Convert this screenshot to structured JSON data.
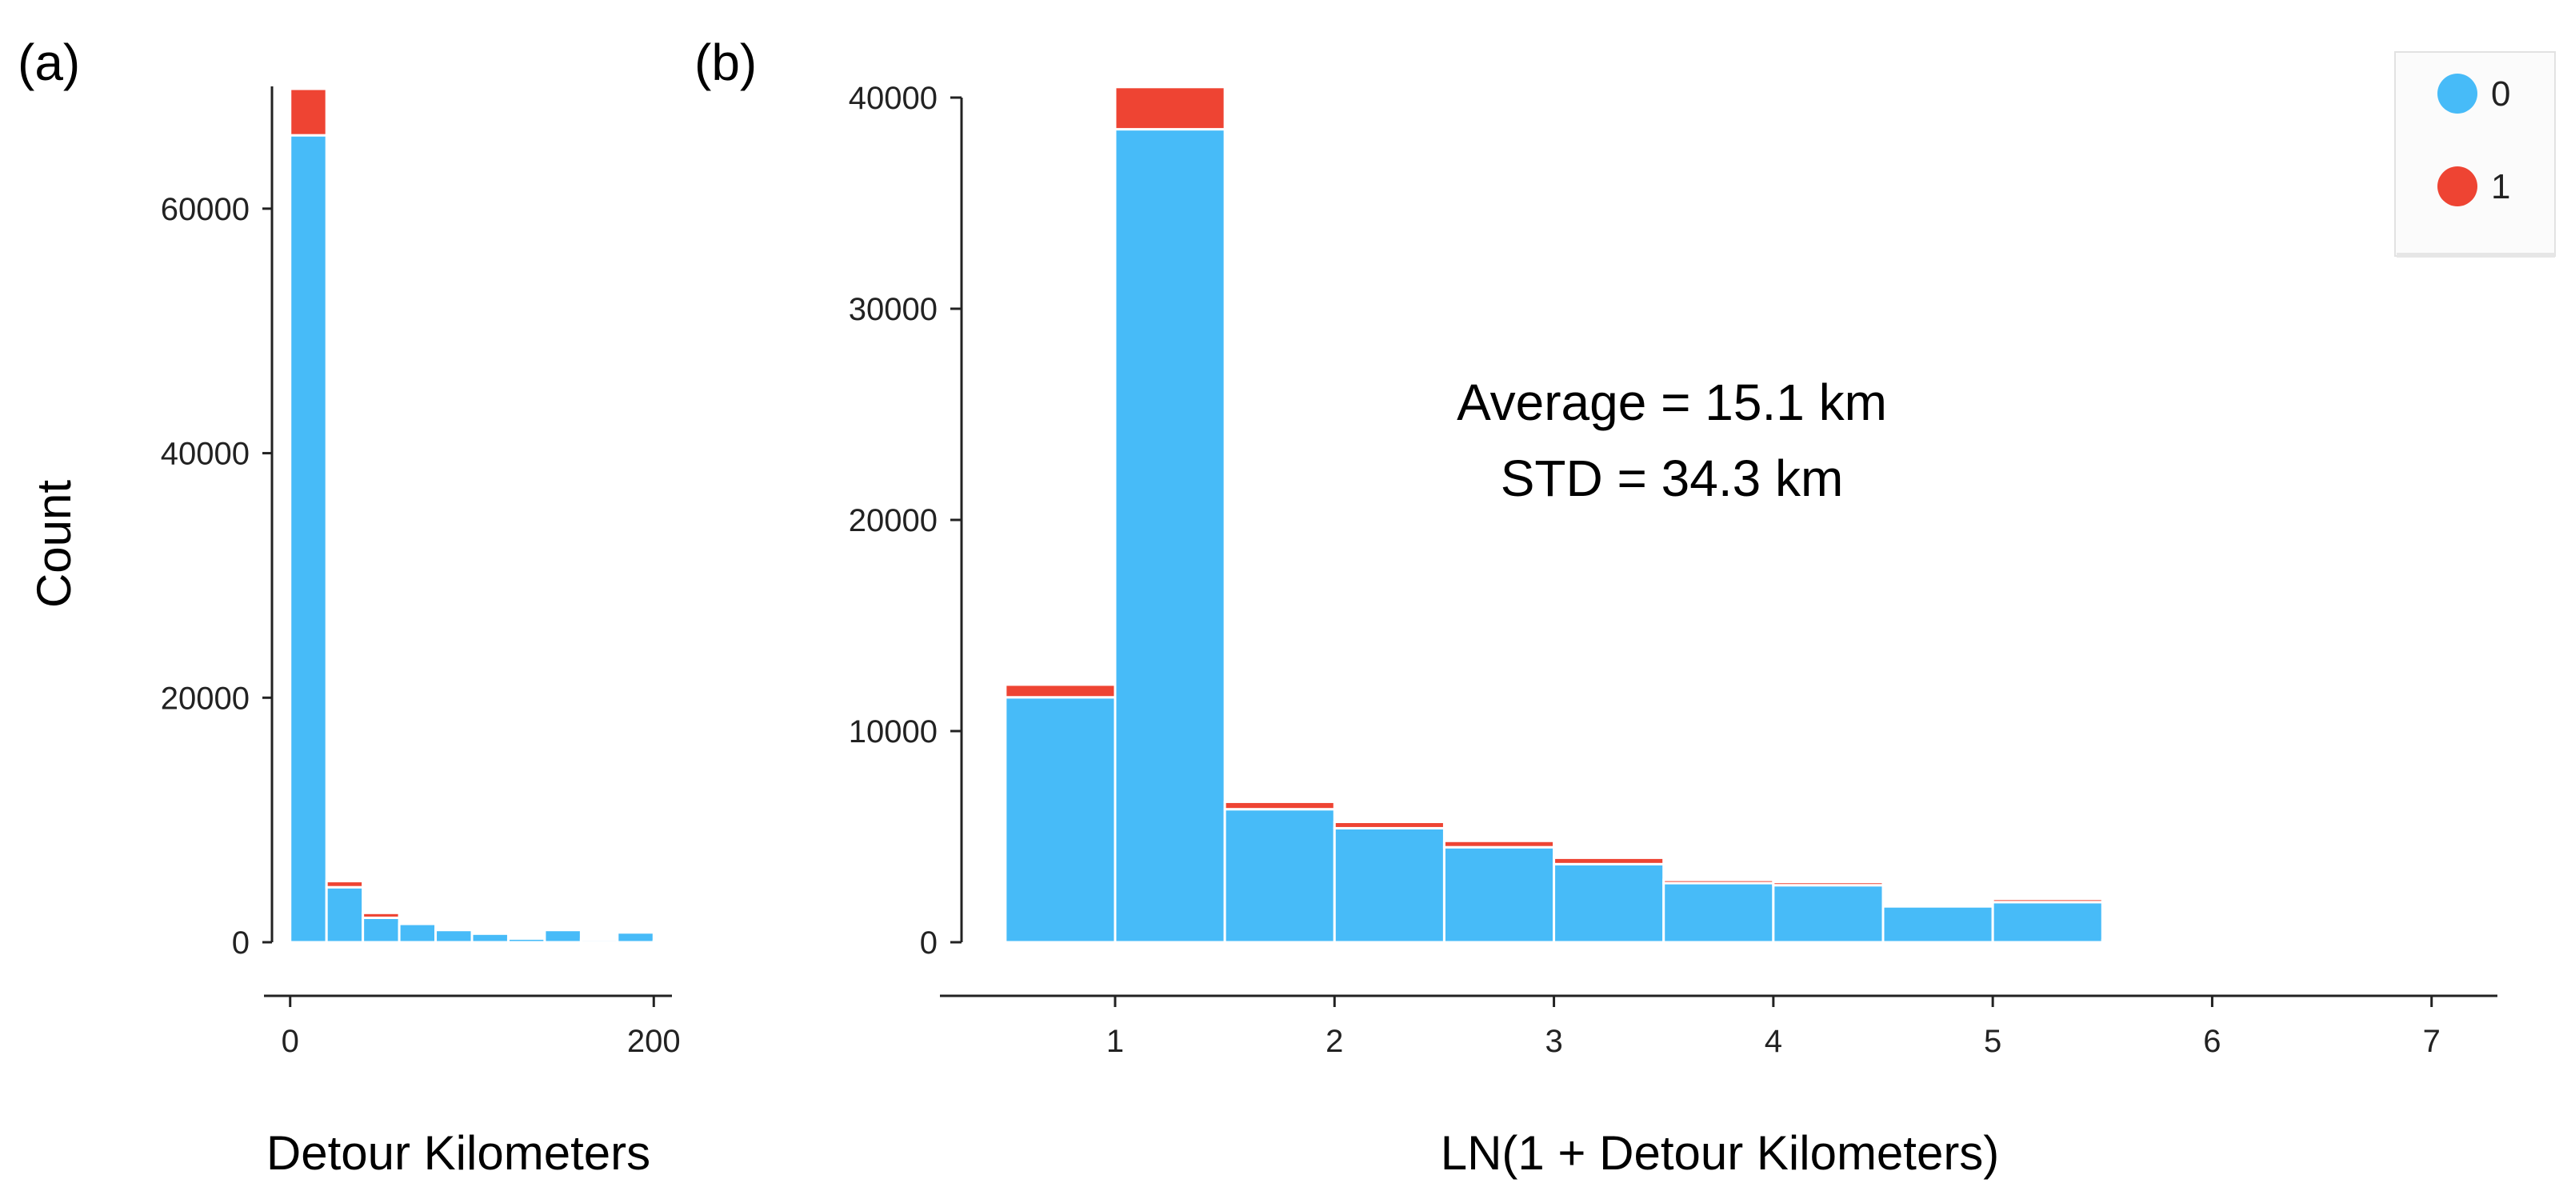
{
  "colors": {
    "series0": "#47BBF8",
    "series1": "#EE4433",
    "axis": "#222222",
    "bar_gap": "#ffffff"
  },
  "chart_data": [
    {
      "panel": "(a)",
      "type": "bar",
      "stacked": true,
      "xlabel": "Detour Kilometers",
      "ylabel": "Count",
      "ylim": [
        0,
        70000
      ],
      "xlim": [
        -10,
        210
      ],
      "yticks": [
        "0",
        "20000",
        "40000",
        "60000"
      ],
      "yticks_values": [
        0,
        20000,
        40000,
        60000
      ],
      "xticks": [
        "0",
        "200"
      ],
      "xticks_values": [
        0,
        200
      ],
      "bins": [
        [
          0,
          20
        ],
        [
          20,
          40
        ],
        [
          40,
          60
        ],
        [
          60,
          80
        ],
        [
          80,
          100
        ],
        [
          100,
          120
        ],
        [
          120,
          140
        ],
        [
          140,
          160
        ],
        [
          160,
          180
        ],
        [
          180,
          200
        ],
        [
          200,
          220
        ]
      ],
      "series": [
        {
          "name": "0",
          "values": [
            66000,
            4500,
            2000,
            1500,
            1000,
            700,
            300,
            1000,
            200,
            800,
            100
          ]
        },
        {
          "name": "1",
          "values": [
            3800,
            500,
            400,
            0,
            0,
            0,
            0,
            0,
            0,
            0,
            0
          ]
        }
      ],
      "grid": false
    },
    {
      "panel": "(b)",
      "type": "bar",
      "stacked": true,
      "xlabel": "LN(1 + Detour Kilometers)",
      "ylabel": "",
      "ylim": [
        0,
        40000
      ],
      "xlim": [
        0.3,
        7.3
      ],
      "yticks": [
        "0",
        "10000",
        "20000",
        "30000",
        "40000"
      ],
      "yticks_values": [
        0,
        10000,
        20000,
        30000,
        40000
      ],
      "xticks": [
        "1",
        "2",
        "3",
        "4",
        "5",
        "6",
        "7"
      ],
      "xticks_values": [
        1,
        2,
        3,
        4,
        5,
        6,
        7
      ],
      "bins": [
        [
          0.5,
          1.0
        ],
        [
          1.0,
          1.5
        ],
        [
          1.5,
          2.0
        ],
        [
          2.0,
          2.5
        ],
        [
          2.5,
          3.0
        ],
        [
          3.0,
          3.5
        ],
        [
          3.5,
          4.0
        ],
        [
          4.0,
          4.5
        ],
        [
          4.5,
          5.0
        ],
        [
          5.0,
          5.5
        ],
        [
          5.5,
          6.0
        ],
        [
          6.0,
          6.5
        ],
        [
          6.5,
          7.0
        ]
      ],
      "series": [
        {
          "name": "0",
          "values": [
            11600,
            38500,
            6300,
            5400,
            4500,
            3700,
            2800,
            2700,
            1700,
            1900,
            100,
            50,
            30
          ]
        },
        {
          "name": "1",
          "values": [
            600,
            2000,
            350,
            300,
            300,
            300,
            150,
            150,
            100,
            150,
            0,
            0,
            0
          ]
        }
      ],
      "legend": {
        "position": "top-right",
        "entries": [
          "0",
          "1"
        ]
      },
      "annotations": [
        "Average = 15.1 km",
        "STD = 34.3 km"
      ],
      "grid": false
    }
  ]
}
